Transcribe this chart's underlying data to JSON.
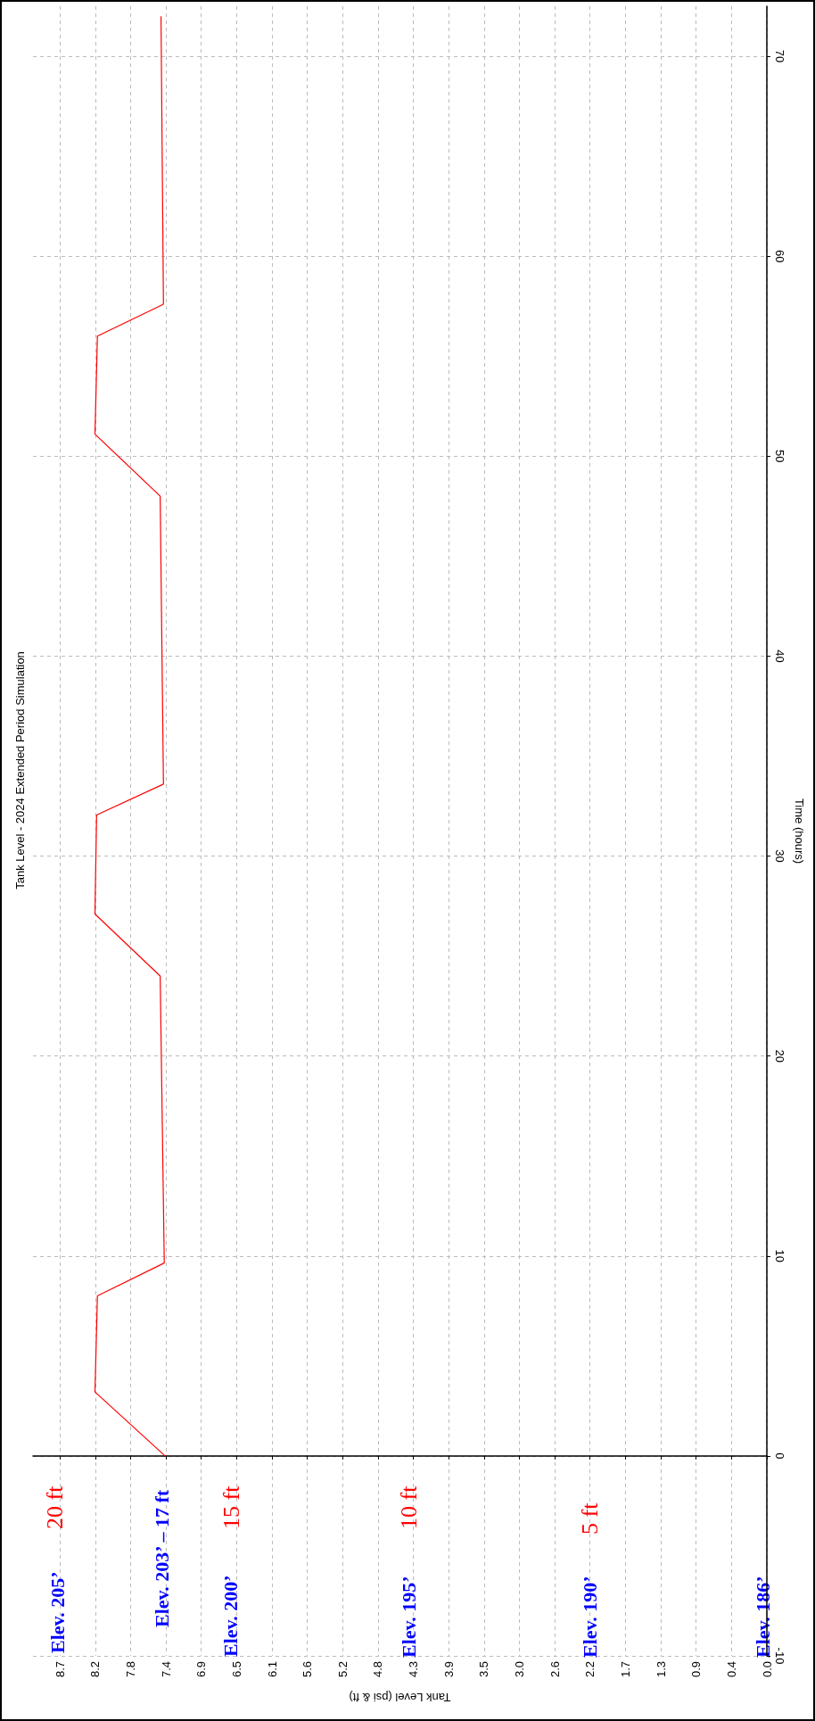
{
  "chart_data": {
    "type": "line",
    "title": "Tank Level - 2024 Extended Period Simulation",
    "xlabel": "Tank Level (psi & ft)",
    "ylabel": "Time (hours)",
    "x": [
      7.38,
      8.24,
      8.21,
      7.39,
      7.44,
      8.24,
      8.22,
      7.4,
      7.44,
      8.24,
      8.21,
      7.4,
      7.43
    ],
    "values": [
      0,
      3.2,
      8.0,
      9.65,
      24.0,
      27.1,
      32.05,
      33.6,
      48.0,
      51.1,
      56.0,
      57.6,
      72.0
    ],
    "color": "#ff0000",
    "marker": "none",
    "grid": true,
    "ylim": [
      -10,
      72.5
    ],
    "yticks": [
      -10,
      0,
      10,
      20,
      30,
      40,
      50,
      60,
      70
    ],
    "xlim": [
      9.0,
      0
    ],
    "xticks": [
      {
        "value": 0,
        "label": "0.0"
      },
      {
        "value": 0.434,
        "label": "0.4"
      },
      {
        "value": 0.867,
        "label": "0.9"
      },
      {
        "value": 1.301,
        "label": "1.3"
      },
      {
        "value": 1.734,
        "label": "1.7"
      },
      {
        "value": 2.168,
        "label": "2.2"
      },
      {
        "value": 2.601,
        "label": "2.6"
      },
      {
        "value": 3.035,
        "label": "3.0"
      },
      {
        "value": 3.468,
        "label": "3.5"
      },
      {
        "value": 3.902,
        "label": "3.9"
      },
      {
        "value": 4.335,
        "label": "4.3"
      },
      {
        "value": 4.769,
        "label": "4.8"
      },
      {
        "value": 5.202,
        "label": "5.2"
      },
      {
        "value": 5.636,
        "label": "5.6"
      },
      {
        "value": 6.069,
        "label": "6.1"
      },
      {
        "value": 6.503,
        "label": "6.5"
      },
      {
        "value": 6.936,
        "label": "6.9"
      },
      {
        "value": 7.37,
        "label": "7.4"
      },
      {
        "value": 7.803,
        "label": "7.8"
      },
      {
        "value": 8.237,
        "label": "8.2"
      },
      {
        "value": 8.67,
        "label": "8.7"
      }
    ],
    "annotations": [
      "Elev. 205’",
      "20 ft",
      "Elev. 203’ – 17 ft",
      "Elev. 200’",
      "15 ft",
      "Elev. 195’",
      "10 ft",
      "Elev. 190’",
      "5 ft",
      "Elev. 186’"
    ]
  }
}
